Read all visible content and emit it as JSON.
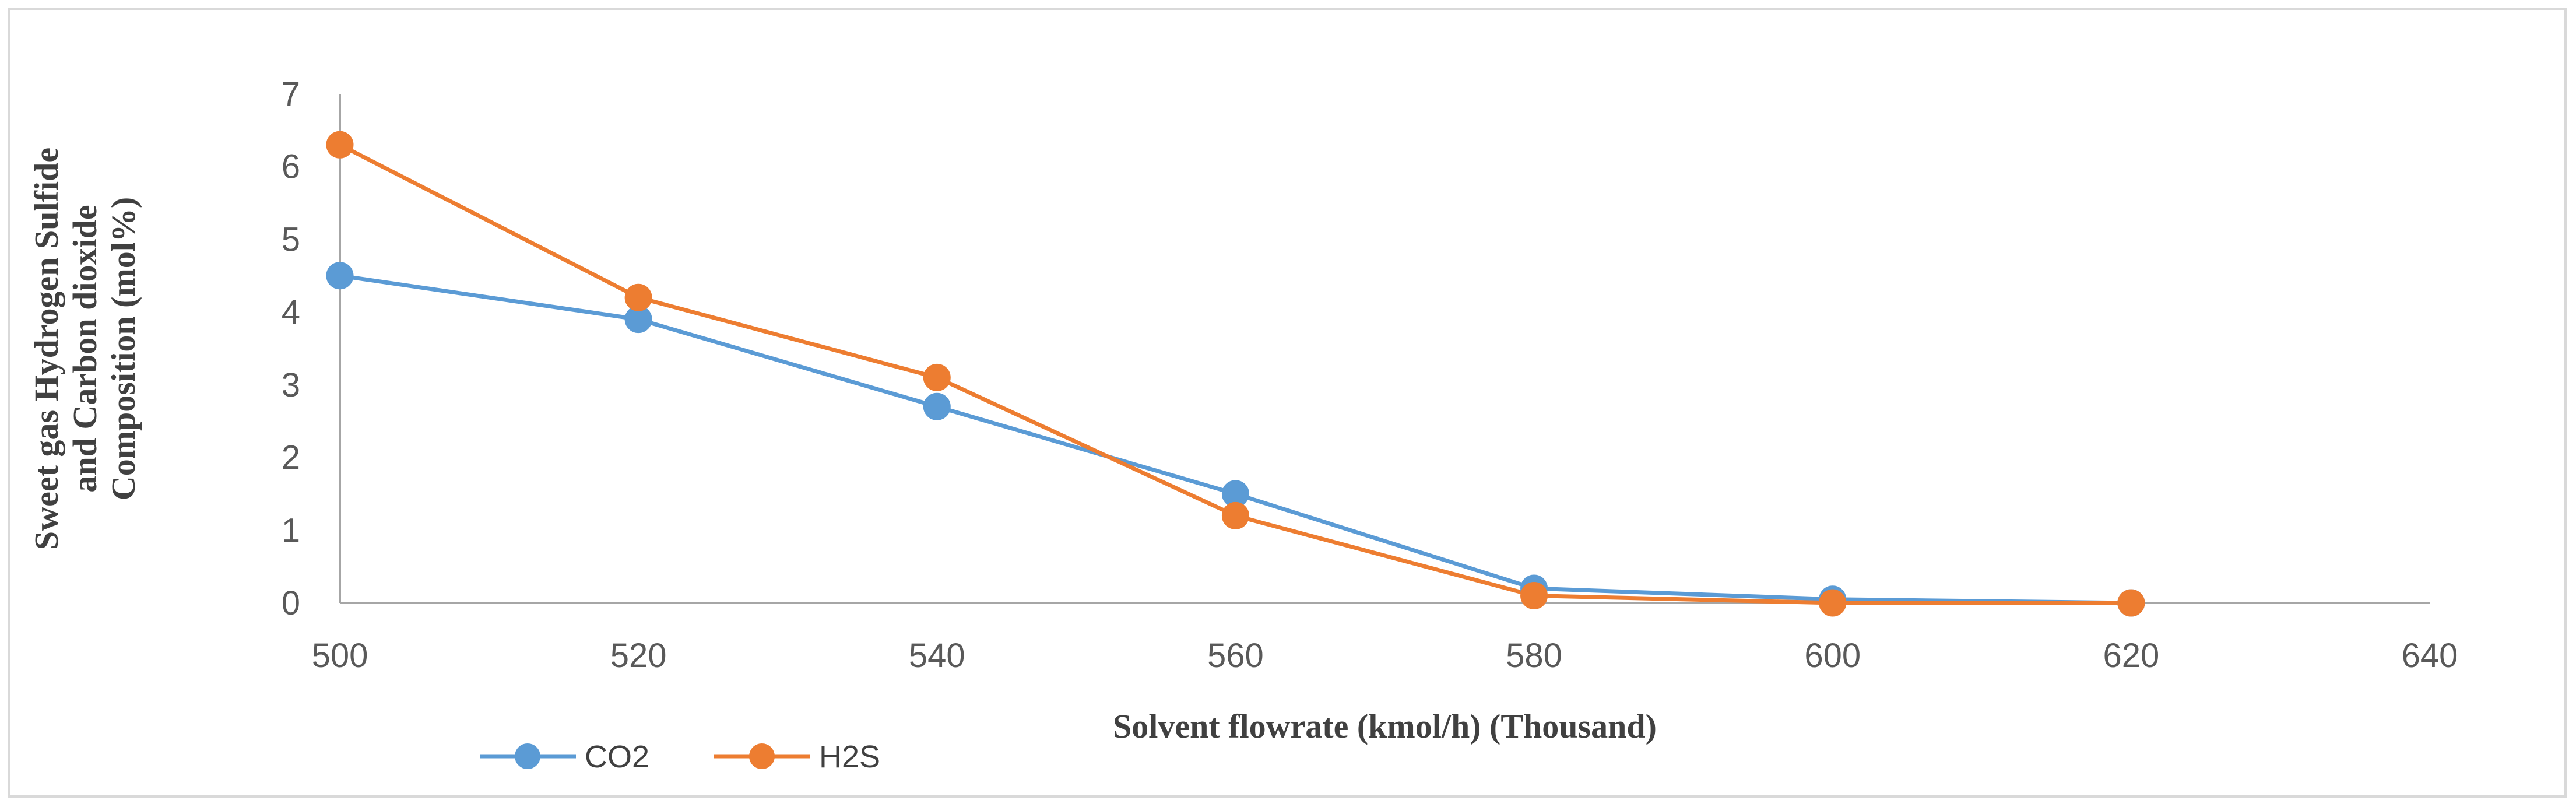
{
  "chart_data": {
    "type": "line",
    "title": "",
    "xlabel": "Solvent flowrate (kmol/h) (Thousand)",
    "ylabel_lines": [
      "Sweet gas Hydrogen Sulfide",
      "and Carbon dioxide",
      "Composition (mol%)"
    ],
    "x": [
      500,
      520,
      540,
      560,
      580,
      600,
      620
    ],
    "xlim": [
      500,
      640
    ],
    "ylim": [
      0,
      7
    ],
    "xticks": [
      500,
      520,
      540,
      560,
      580,
      600,
      620,
      640
    ],
    "yticks": [
      0,
      1,
      2,
      3,
      4,
      5,
      6,
      7
    ],
    "grid": false,
    "legend_position": "bottom-left",
    "series": [
      {
        "name": "CO2",
        "color": "#5b9bd5",
        "values": [
          4.5,
          3.9,
          2.7,
          1.5,
          0.2,
          0.05,
          0.0
        ]
      },
      {
        "name": "H2S",
        "color": "#ed7d31",
        "values": [
          6.3,
          4.2,
          3.1,
          1.2,
          0.1,
          0.0,
          0.0
        ]
      }
    ],
    "axis_color": "#a6a6a6"
  }
}
